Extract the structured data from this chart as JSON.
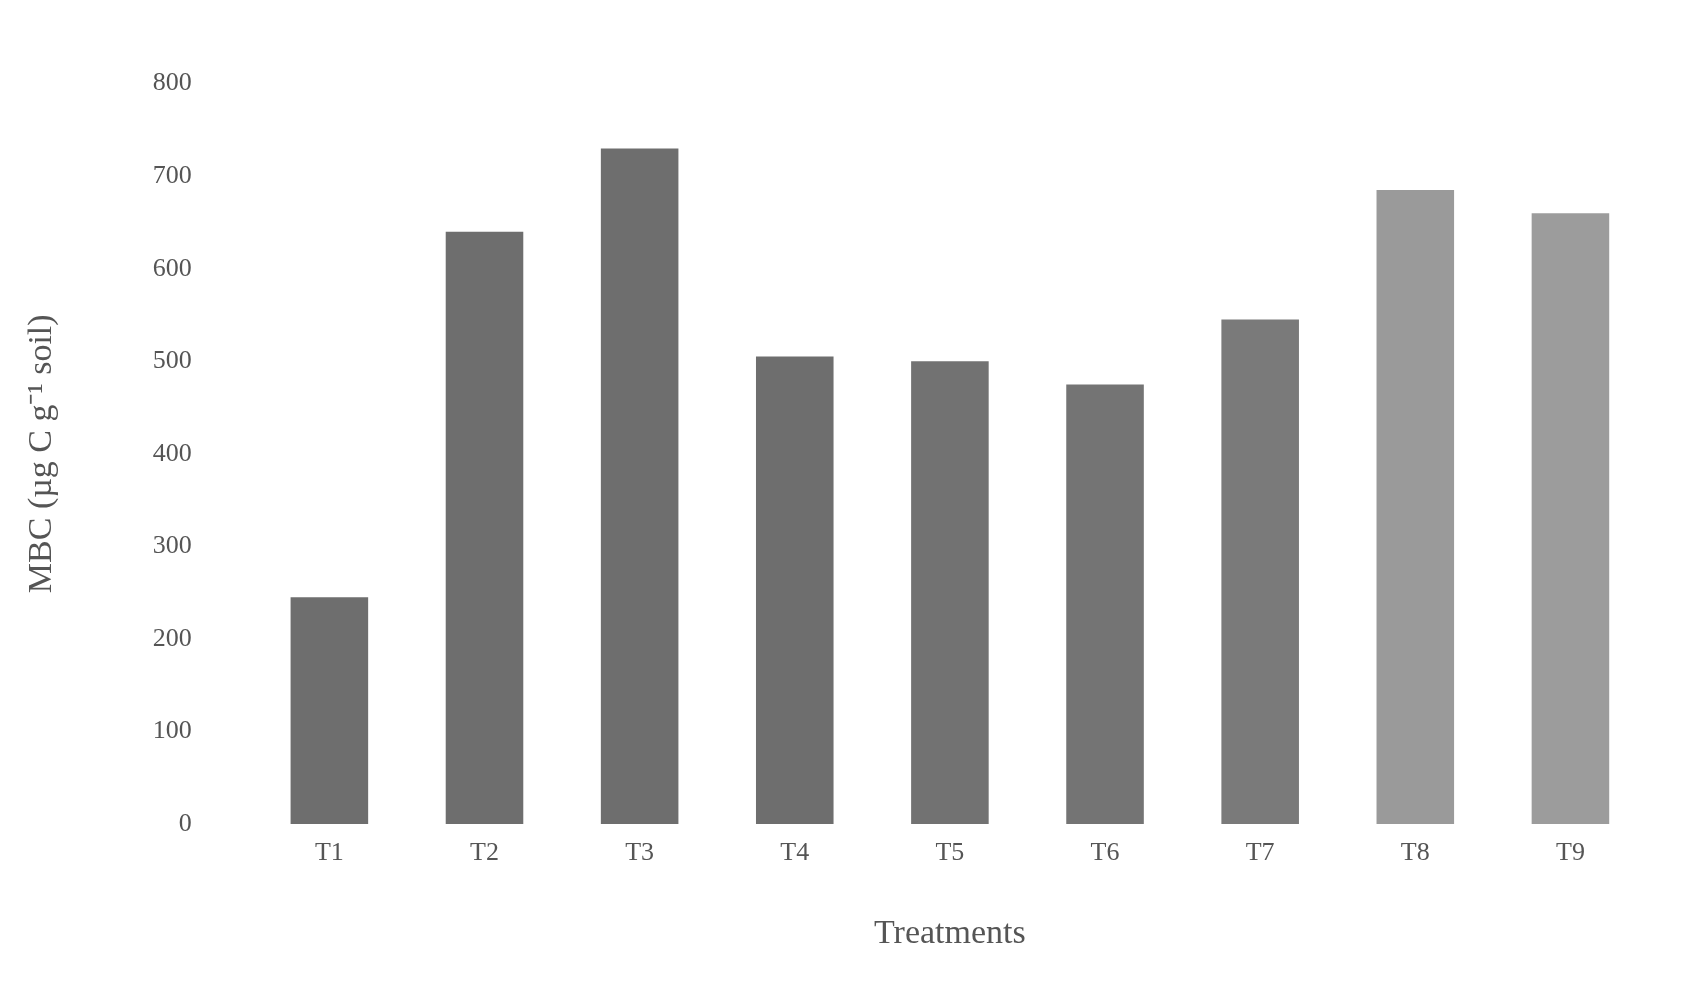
{
  "chart_data": {
    "type": "bar",
    "xlabel": "Treatments",
    "ylabel": "MBC (µg C g⁻¹ soil)",
    "categories": [
      "T1",
      "T2",
      "T3",
      "T4",
      "T5",
      "T6",
      "T7",
      "T8",
      "T9"
    ],
    "values": [
      245,
      640,
      730,
      505,
      500,
      475,
      545,
      685,
      660
    ],
    "colors": [
      "#6e6e6e",
      "#6e6e6e",
      "#6e6e6e",
      "#6e6e6e",
      "#727272",
      "#747474",
      "#7a7a7a",
      "#9a9a9a",
      "#9c9c9c"
    ],
    "ylim": [
      0,
      800
    ],
    "yticks": [
      0,
      100,
      200,
      300,
      400,
      500,
      600,
      700,
      800
    ],
    "grid": false
  }
}
